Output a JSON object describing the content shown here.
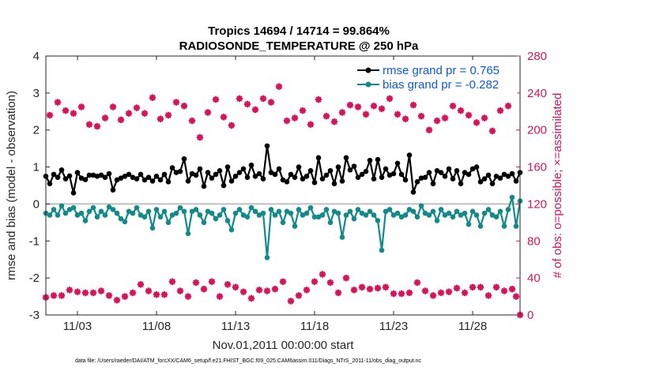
{
  "chart_data": {
    "type": "line",
    "title": "Tropics 14694 / 14714 = 99.864%",
    "subtitle": "RADIOSONDE_TEMPERATURE @ 250 hPa",
    "xlabel": "Nov.01,2011 00:00:00 start",
    "ylabel_left": "rmse and bias (model - observation)",
    "ylabel_right": "# of obs: o=possible; ×=assimilated",
    "footnote": "data file: /Users/raeder/DAI/ATM_forcXX/CAM6_setup/f.e21.FHIST_BGC.f09_025.CAM6assim.011/Diags_NTrS_2011-11/obs_diag_output.nc",
    "x_tick_labels": [
      "11/03",
      "11/08",
      "11/13",
      "11/18",
      "11/23",
      "11/28"
    ],
    "x_tick_values": [
      3,
      8,
      13,
      18,
      23,
      28
    ],
    "xlim": [
      1,
      31
    ],
    "ylim_left": [
      -3,
      4
    ],
    "y_ticks_left": [
      "4",
      "3",
      "2",
      "1",
      "0",
      "-1",
      "-2",
      "-3"
    ],
    "ylim_right": [
      0,
      280
    ],
    "y_ticks_right": [
      "280",
      "240",
      "200",
      "160",
      "120",
      "80",
      "40",
      "0"
    ],
    "colors": {
      "rmse": "#000000",
      "bias": "#138a8a",
      "obs": "#d6145a",
      "legend_text": "#0a5ae6",
      "zero_line": "#b0b0b0"
    },
    "x": [
      1.0,
      1.25,
      1.5,
      1.75,
      2.0,
      2.25,
      2.5,
      2.75,
      3.0,
      3.25,
      3.5,
      3.75,
      4.0,
      4.25,
      4.5,
      4.75,
      5.0,
      5.25,
      5.5,
      5.75,
      6.0,
      6.25,
      6.5,
      6.75,
      7.0,
      7.25,
      7.5,
      7.75,
      8.0,
      8.25,
      8.5,
      8.75,
      9.0,
      9.25,
      9.5,
      9.75,
      10.0,
      10.25,
      10.5,
      10.75,
      11.0,
      11.25,
      11.5,
      11.75,
      12.0,
      12.25,
      12.5,
      12.75,
      13.0,
      13.25,
      13.5,
      13.75,
      14.0,
      14.25,
      14.5,
      14.75,
      15.0,
      15.25,
      15.5,
      15.75,
      16.0,
      16.25,
      16.5,
      16.75,
      17.0,
      17.25,
      17.5,
      17.75,
      18.0,
      18.25,
      18.5,
      18.75,
      19.0,
      19.25,
      19.5,
      19.75,
      20.0,
      20.25,
      20.5,
      20.75,
      21.0,
      21.25,
      21.5,
      21.75,
      22.0,
      22.25,
      22.5,
      22.75,
      23.0,
      23.25,
      23.5,
      23.75,
      24.0,
      24.25,
      24.5,
      24.75,
      25.0,
      25.25,
      25.5,
      25.75,
      26.0,
      26.25,
      26.5,
      26.75,
      27.0,
      27.25,
      27.5,
      27.75,
      28.0,
      28.25,
      28.5,
      28.75,
      29.0,
      29.25,
      29.5,
      29.75,
      30.0,
      30.25,
      30.5,
      30.75,
      31.0
    ],
    "series": [
      {
        "name": "rmse grand pr = 0.765",
        "axis": "left",
        "values": [
          0.75,
          0.55,
          0.8,
          0.72,
          0.92,
          0.68,
          0.76,
          0.3,
          0.85,
          0.7,
          0.66,
          0.78,
          0.78,
          0.75,
          0.78,
          0.72,
          0.82,
          0.38,
          0.65,
          0.7,
          0.75,
          0.8,
          0.72,
          0.68,
          0.8,
          0.65,
          0.72,
          0.62,
          0.75,
          0.65,
          0.8,
          0.6,
          0.98,
          0.85,
          0.88,
          1.22,
          0.62,
          0.82,
          0.78,
          0.95,
          0.48,
          0.85,
          0.7,
          0.8,
          0.9,
          0.5,
          1.0,
          0.62,
          0.75,
          0.85,
          0.95,
          0.72,
          1.05,
          0.75,
          0.82,
          0.68,
          1.57,
          0.85,
          0.8,
          0.95,
          0.65,
          0.6,
          0.8,
          0.72,
          1.0,
          0.68,
          0.75,
          0.9,
          0.58,
          1.25,
          0.68,
          0.78,
          0.9,
          0.55,
          1.0,
          0.62,
          1.25,
          0.92,
          1.02,
          0.72,
          0.8,
          0.88,
          1.18,
          0.68,
          1.2,
          0.72,
          0.95,
          0.78,
          0.82,
          1.1,
          0.8,
          0.65,
          1.32,
          0.32,
          0.6,
          0.7,
          0.72,
          0.85,
          0.55,
          0.9,
          0.85,
          0.75,
          0.95,
          0.68,
          0.9,
          0.55,
          0.85,
          0.8,
          0.95,
          1.0,
          0.6,
          0.68,
          0.78,
          0.55,
          0.75,
          0.7,
          0.8,
          0.75,
          0.82,
          0.62,
          0.85
        ]
      },
      {
        "name": "bias grand pr = -0.282",
        "axis": "left",
        "values": [
          -0.25,
          -0.3,
          -0.15,
          -0.3,
          -0.05,
          -0.25,
          -0.15,
          -0.1,
          -0.3,
          -0.25,
          -0.45,
          -0.2,
          -0.1,
          -0.35,
          -0.2,
          -0.3,
          -0.08,
          -0.15,
          -0.25,
          -0.4,
          -0.48,
          -0.2,
          -0.25,
          -0.1,
          -0.3,
          -0.35,
          -0.2,
          -0.65,
          -0.15,
          -0.35,
          -0.2,
          -0.5,
          -0.3,
          -0.25,
          -0.1,
          -0.2,
          -0.8,
          -0.2,
          -0.15,
          -0.3,
          -0.5,
          -0.2,
          -0.25,
          -0.4,
          -0.3,
          -0.15,
          -0.45,
          -0.7,
          -0.25,
          -0.15,
          -0.3,
          -0.35,
          -0.1,
          -0.2,
          -0.3,
          -0.25,
          -1.45,
          -0.15,
          -0.3,
          -0.2,
          -0.5,
          -0.2,
          -0.25,
          -0.6,
          -0.15,
          -0.3,
          -0.25,
          -0.1,
          -0.35,
          -0.35,
          -0.3,
          -0.15,
          -0.5,
          -0.2,
          -0.25,
          -0.9,
          -0.3,
          -0.2,
          -0.4,
          -0.15,
          -0.25,
          -0.3,
          -0.2,
          -0.3,
          -0.45,
          -1.25,
          -0.2,
          -0.15,
          -0.3,
          -0.25,
          -0.35,
          -0.3,
          -0.15,
          -0.2,
          -0.35,
          -0.05,
          -0.25,
          -0.3,
          -0.2,
          -0.45,
          -0.15,
          -0.3,
          -0.25,
          -0.35,
          -0.2,
          -0.3,
          -0.25,
          -0.55,
          -0.2,
          -0.3,
          -0.6,
          -0.25,
          -0.15,
          -0.3,
          -0.35,
          -0.2,
          -0.6,
          -0.15,
          0.18,
          -0.6,
          0.08
        ]
      }
    ],
    "obs_possible": {
      "name": "possible",
      "axis": "right",
      "x": [
        1.25,
        1.75,
        2.25,
        2.75,
        3.25,
        3.75,
        4.25,
        4.75,
        5.25,
        5.75,
        6.25,
        6.75,
        7.25,
        7.75,
        8.25,
        8.75,
        9.25,
        9.75,
        10.25,
        10.75,
        11.25,
        11.75,
        12.25,
        12.75,
        13.25,
        13.75,
        14.25,
        14.75,
        15.25,
        15.75,
        16.25,
        16.75,
        17.25,
        17.75,
        18.25,
        18.75,
        19.25,
        19.75,
        20.25,
        20.75,
        21.25,
        21.75,
        22.25,
        22.75,
        23.25,
        23.75,
        24.25,
        24.75,
        25.25,
        25.75,
        26.25,
        26.75,
        27.25,
        27.75,
        28.25,
        28.75,
        29.25,
        29.75,
        30.25,
        30.75,
        1.0,
        1.5,
        2.0,
        2.5,
        3.0,
        3.5,
        4.0,
        4.5,
        5.0,
        5.5,
        6.0,
        6.5,
        7.0,
        7.5,
        8.0,
        8.5,
        9.0,
        9.5,
        10.0,
        10.5,
        11.0,
        11.5,
        12.0,
        12.5,
        13.0,
        13.5,
        14.0,
        14.5,
        15.0,
        15.5,
        16.0,
        16.5,
        17.0,
        17.5,
        18.0,
        18.5,
        19.0,
        19.5,
        20.0,
        20.5,
        21.0,
        21.5,
        22.0,
        22.5,
        23.0,
        23.5,
        24.0,
        24.5,
        25.0,
        25.5,
        26.0,
        26.5,
        27.0,
        27.5,
        28.0,
        28.5,
        29.0,
        29.5,
        30.0,
        30.5,
        31.0
      ],
      "values": [
        216,
        230,
        221,
        218,
        225,
        206,
        204,
        213,
        225,
        211,
        218,
        224,
        218,
        235,
        212,
        216,
        230,
        226,
        210,
        192,
        219,
        233,
        214,
        205,
        234,
        228,
        222,
        234,
        230,
        247,
        210,
        213,
        221,
        206,
        233,
        215,
        209,
        219,
        227,
        225,
        217,
        226,
        223,
        234,
        217,
        212,
        227,
        215,
        200,
        210,
        213,
        226,
        221,
        216,
        208,
        213,
        199,
        221,
        226,
        20,
        19,
        21,
        21,
        27,
        25,
        24,
        24,
        26,
        21,
        16,
        20,
        24,
        33,
        26,
        22,
        22,
        36,
        26,
        20,
        35,
        28,
        36,
        20,
        33,
        30,
        25,
        18,
        27,
        26,
        28,
        36,
        15,
        21,
        27,
        36,
        44,
        35,
        24,
        40,
        27,
        30,
        28,
        29,
        30,
        23,
        23,
        24,
        35,
        26,
        21,
        24,
        25,
        29,
        24,
        30,
        30,
        21,
        30,
        26,
        28,
        0
      ]
    },
    "obs_assimilated": {
      "name": "assimilated",
      "axis": "right",
      "x": [
        1.25,
        1.75,
        2.25,
        2.75,
        3.25,
        3.75,
        4.25,
        4.75,
        5.25,
        5.75,
        6.25,
        6.75,
        7.25,
        7.75,
        8.25,
        8.75,
        9.25,
        9.75,
        10.25,
        10.75,
        11.25,
        11.75,
        12.25,
        12.75,
        13.25,
        13.75,
        14.25,
        14.75,
        15.25,
        15.75,
        16.25,
        16.75,
        17.25,
        17.75,
        18.25,
        18.75,
        19.25,
        19.75,
        20.25,
        20.75,
        21.25,
        21.75,
        22.25,
        22.75,
        23.25,
        23.75,
        24.25,
        24.75,
        25.25,
        25.75,
        26.25,
        26.75,
        27.25,
        27.75,
        28.25,
        28.75,
        29.25,
        29.75,
        30.25,
        30.75,
        1.0,
        1.5,
        2.0,
        2.5,
        3.0,
        3.5,
        4.0,
        4.5,
        5.0,
        5.5,
        6.0,
        6.5,
        7.0,
        7.5,
        8.0,
        8.5,
        9.0,
        9.5,
        10.0,
        10.5,
        11.0,
        11.5,
        12.0,
        12.5,
        13.0,
        13.5,
        14.0,
        14.5,
        15.0,
        15.5,
        16.0,
        16.5,
        17.0,
        17.5,
        18.0,
        18.5,
        19.0,
        19.5,
        20.0,
        20.5,
        21.0,
        21.5,
        22.0,
        22.5,
        23.0,
        23.5,
        24.0,
        24.5,
        25.0,
        25.5,
        26.0,
        26.5,
        27.0,
        27.5,
        28.0,
        28.5,
        29.0,
        29.5,
        30.0,
        30.5,
        31.0
      ],
      "values": [
        216,
        230,
        221,
        218,
        225,
        206,
        204,
        213,
        225,
        211,
        218,
        224,
        218,
        235,
        212,
        216,
        230,
        226,
        210,
        192,
        219,
        233,
        214,
        205,
        234,
        228,
        222,
        234,
        230,
        247,
        210,
        213,
        221,
        206,
        233,
        215,
        209,
        219,
        227,
        225,
        217,
        226,
        223,
        234,
        217,
        212,
        227,
        215,
        200,
        210,
        213,
        226,
        221,
        216,
        208,
        213,
        199,
        221,
        226,
        20,
        19,
        21,
        21,
        27,
        25,
        24,
        24,
        26,
        21,
        16,
        20,
        24,
        33,
        26,
        22,
        22,
        36,
        26,
        20,
        35,
        28,
        36,
        20,
        33,
        30,
        25,
        18,
        27,
        26,
        28,
        36,
        15,
        21,
        27,
        36,
        44,
        35,
        24,
        40,
        27,
        30,
        28,
        29,
        30,
        23,
        23,
        24,
        35,
        26,
        21,
        24,
        25,
        29,
        24,
        30,
        30,
        21,
        30,
        26,
        28,
        0
      ]
    },
    "legend_position": "top-right",
    "grid": false
  }
}
